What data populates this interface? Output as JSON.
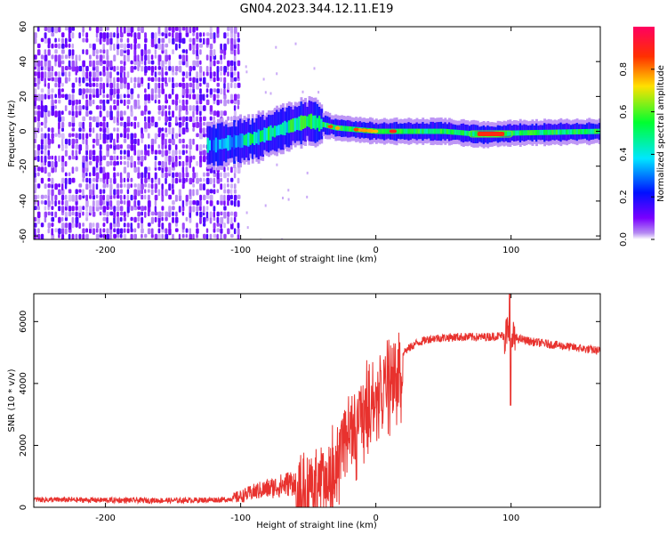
{
  "chart_data": [
    {
      "type": "heatmap",
      "title": "GN04.2023.344.12.11.E19",
      "xlabel": "Height of straight line (km)",
      "ylabel": "Frequency (Hz)",
      "xlim": [
        -253,
        166
      ],
      "ylim": [
        -62,
        60
      ],
      "xticks": [
        -200,
        -100,
        0,
        100
      ],
      "xtick_labels": [
        "-200",
        "-100",
        "0",
        "100"
      ],
      "yticks": [
        -60,
        -40,
        -20,
        0,
        20,
        40,
        60
      ],
      "ytick_labels": [
        "-60",
        "-40",
        "-20",
        "0",
        "20",
        "40",
        "60"
      ],
      "colorbar": {
        "label": "Normalized spectral amplitude",
        "range": [
          0,
          1
        ],
        "ticks": [
          0.0,
          0.2,
          0.4,
          0.6,
          0.8
        ],
        "tick_labels": [
          "0.0",
          "0.2",
          "0.4",
          "0.6",
          "0.8"
        ],
        "colormap": "gist_rainbow_r"
      },
      "features": {
        "noise_region_x": [
          -253,
          -100
        ],
        "signal_band_center_hz_at": [
          [
            -120,
            -8
          ],
          [
            -90,
            -4
          ],
          [
            -60,
            4
          ],
          [
            -50,
            6
          ],
          [
            -30,
            2
          ],
          [
            0,
            0
          ],
          [
            50,
            0
          ],
          [
            80,
            -2
          ],
          [
            100,
            -1
          ],
          [
            166,
            0
          ]
        ],
        "peak_segment_x": [
          75,
          95
        ]
      }
    },
    {
      "type": "line",
      "xlabel": "Height of straight line (km)",
      "ylabel": "SNR (10 * v/v)",
      "xlim": [
        -253,
        166
      ],
      "ylim": [
        0,
        6900
      ],
      "xticks": [
        -200,
        -100,
        0,
        100
      ],
      "xtick_labels": [
        "-200",
        "-100",
        "0",
        "100"
      ],
      "yticks": [
        0,
        2000,
        4000,
        6000
      ],
      "ytick_labels": [
        "0",
        "2000",
        "4000",
        "6000"
      ],
      "series": [
        {
          "name": "SNR",
          "color": "#e8322e",
          "envelope_points": [
            [
              -253,
              250
            ],
            [
              -200,
              230
            ],
            [
              -150,
              220
            ],
            [
              -110,
              250
            ],
            [
              -100,
              350
            ],
            [
              -90,
              500
            ],
            [
              -70,
              700
            ],
            [
              -55,
              900
            ],
            [
              -45,
              1000
            ],
            [
              -35,
              1300
            ],
            [
              -28,
              2000
            ],
            [
              -20,
              2800
            ],
            [
              -12,
              3300
            ],
            [
              -5,
              3800
            ],
            [
              0,
              4000
            ],
            [
              10,
              4500
            ],
            [
              20,
              5000
            ],
            [
              30,
              5300
            ],
            [
              40,
              5450
            ],
            [
              60,
              5500
            ],
            [
              80,
              5500
            ],
            [
              95,
              5550
            ],
            [
              100,
              5500
            ],
            [
              115,
              5350
            ],
            [
              140,
              5200
            ],
            [
              166,
              5050
            ]
          ],
          "spike_x": 99,
          "spike_max": 6900,
          "spike_min": 3300
        }
      ]
    }
  ]
}
